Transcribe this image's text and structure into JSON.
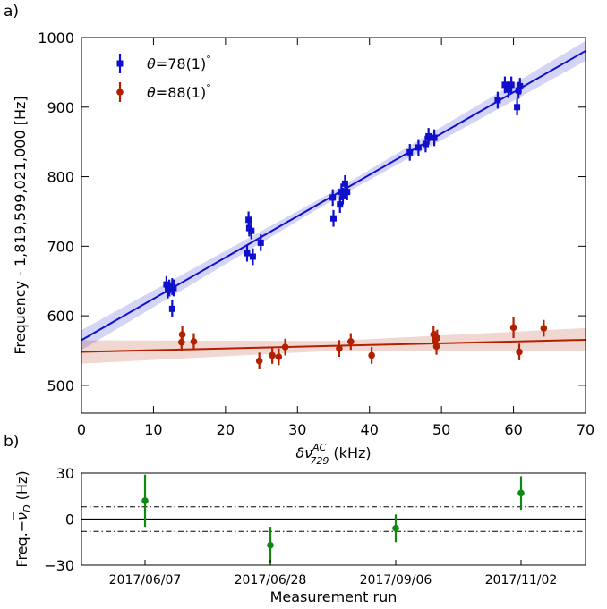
{
  "chart_data": [
    {
      "type": "scatter",
      "panel_label": "a)",
      "xlabel": "δν",
      "xlabel_sup": "AC",
      "xlabel_sub": "729",
      "xlabel_unit": " (kHz)",
      "ylabel": "Frequency - 1,819,599,021,000 [Hz]",
      "xlim": [
        0,
        70
      ],
      "ylim": [
        460,
        1000
      ],
      "xticks": [
        0,
        10,
        20,
        30,
        40,
        50,
        60,
        70
      ],
      "yticks": [
        500,
        600,
        700,
        800,
        900,
        1000
      ],
      "grid": false,
      "legend_position": "top-left",
      "series": [
        {
          "name": "θ=78(1)°",
          "label_theta": "θ",
          "label_value": "=78(1)",
          "label_degree": "°",
          "color": "#1010cc",
          "marker": "square",
          "fit": {
            "intercept": 565,
            "slope": 5.94,
            "band": 6
          },
          "points": [
            {
              "x": 11.8,
              "y": 645,
              "e": 12
            },
            {
              "x": 12.0,
              "y": 637,
              "e": 12
            },
            {
              "x": 12.2,
              "y": 640,
              "e": 12
            },
            {
              "x": 12.6,
              "y": 642,
              "e": 12
            },
            {
              "x": 12.6,
              "y": 610,
              "e": 12
            },
            {
              "x": 12.8,
              "y": 640,
              "e": 12
            },
            {
              "x": 23.0,
              "y": 690,
              "e": 12
            },
            {
              "x": 23.2,
              "y": 738,
              "e": 12
            },
            {
              "x": 23.3,
              "y": 726,
              "e": 12
            },
            {
              "x": 23.6,
              "y": 722,
              "e": 12
            },
            {
              "x": 23.8,
              "y": 685,
              "e": 12
            },
            {
              "x": 24.9,
              "y": 705,
              "e": 12
            },
            {
              "x": 34.9,
              "y": 770,
              "e": 12
            },
            {
              "x": 35.0,
              "y": 740,
              "e": 12
            },
            {
              "x": 35.9,
              "y": 760,
              "e": 12
            },
            {
              "x": 36.1,
              "y": 778,
              "e": 12
            },
            {
              "x": 36.3,
              "y": 772,
              "e": 12
            },
            {
              "x": 36.6,
              "y": 790,
              "e": 12
            },
            {
              "x": 36.9,
              "y": 778,
              "e": 12
            },
            {
              "x": 45.6,
              "y": 835,
              "e": 12
            },
            {
              "x": 46.8,
              "y": 842,
              "e": 12
            },
            {
              "x": 47.8,
              "y": 847,
              "e": 12
            },
            {
              "x": 48.2,
              "y": 858,
              "e": 12
            },
            {
              "x": 49.0,
              "y": 856,
              "e": 12
            },
            {
              "x": 57.8,
              "y": 910,
              "e": 12
            },
            {
              "x": 58.8,
              "y": 932,
              "e": 12
            },
            {
              "x": 59.3,
              "y": 925,
              "e": 12
            },
            {
              "x": 59.7,
              "y": 932,
              "e": 12
            },
            {
              "x": 60.5,
              "y": 900,
              "e": 12
            },
            {
              "x": 60.7,
              "y": 924,
              "e": 12
            },
            {
              "x": 60.9,
              "y": 930,
              "e": 12
            }
          ]
        },
        {
          "name": "θ=88(1)°",
          "label_theta": "θ",
          "label_value": "=88(1)",
          "label_degree": "°",
          "color": "#b32000",
          "marker": "circle",
          "fit": {
            "intercept": 548,
            "slope": 0.25,
            "band": 7
          },
          "points": [
            {
              "x": 13.9,
              "y": 562,
              "e": 12
            },
            {
              "x": 14.0,
              "y": 573,
              "e": 12
            },
            {
              "x": 15.6,
              "y": 563,
              "e": 12
            },
            {
              "x": 24.7,
              "y": 535,
              "e": 12
            },
            {
              "x": 26.5,
              "y": 543,
              "e": 12
            },
            {
              "x": 27.4,
              "y": 541,
              "e": 12
            },
            {
              "x": 28.3,
              "y": 555,
              "e": 12
            },
            {
              "x": 35.8,
              "y": 553,
              "e": 12
            },
            {
              "x": 37.4,
              "y": 563,
              "e": 12
            },
            {
              "x": 40.3,
              "y": 543,
              "e": 12
            },
            {
              "x": 48.9,
              "y": 573,
              "e": 12
            },
            {
              "x": 49.1,
              "y": 566,
              "e": 12
            },
            {
              "x": 49.3,
              "y": 556,
              "e": 12
            },
            {
              "x": 49.4,
              "y": 568,
              "e": 12
            },
            {
              "x": 60.0,
              "y": 583,
              "e": 15
            },
            {
              "x": 60.8,
              "y": 548,
              "e": 12
            },
            {
              "x": 64.2,
              "y": 582,
              "e": 12
            }
          ]
        }
      ]
    },
    {
      "type": "scatter",
      "panel_label": "b)",
      "xlabel": "Measurement run",
      "ylabel_prefix": "Freq.−",
      "ylabel_symbol": "ν",
      "ylabel_sub": "D",
      "ylabel_unit": " (Hz)",
      "ylim": [
        -30,
        30
      ],
      "yticks": [
        -30,
        0,
        30
      ],
      "ytick_labels": [
        "−30",
        "0",
        "30"
      ],
      "categories": [
        "2017/06/07",
        "2017/06/28",
        "2017/09/06",
        "2017/11/02"
      ],
      "values": [
        12,
        -17,
        -6,
        17
      ],
      "errors": [
        17,
        12,
        9,
        11
      ],
      "reference_lines": [
        0
      ],
      "dashdot_lines": [
        8,
        -8
      ],
      "color": "#118811",
      "grid": false
    }
  ]
}
